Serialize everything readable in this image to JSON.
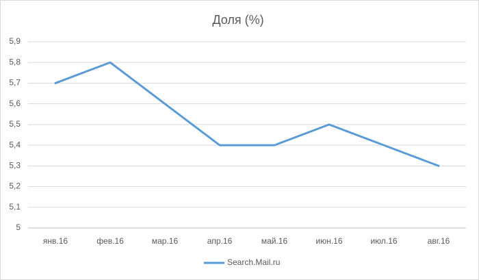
{
  "chart_data": {
    "type": "line",
    "title": "Доля (%)",
    "categories": [
      "янв.16",
      "фев.16",
      "мар.16",
      "апр.16",
      "май.16",
      "июн.16",
      "июл.16",
      "авг.16"
    ],
    "series": [
      {
        "name": "Search.Mail.ru",
        "color": "#5b9bd5",
        "values": [
          5.7,
          5.8,
          5.6,
          5.4,
          5.4,
          5.5,
          5.4,
          5.3
        ]
      }
    ],
    "ylim": [
      5,
      5.9
    ],
    "yticks": [
      5,
      {
        "value": 5.1,
        "label": "5,1"
      },
      {
        "value": 5.2,
        "label": "5,2"
      },
      {
        "value": 5.3,
        "label": "5,3"
      },
      {
        "value": 5.4,
        "label": "5,4"
      },
      {
        "value": 5.5,
        "label": "5,5"
      },
      {
        "value": 5.6,
        "label": "5,6"
      },
      {
        "value": 5.7,
        "label": "5,7"
      },
      {
        "value": 5.8,
        "label": "5,8"
      },
      {
        "value": 5.9,
        "label": "5,9"
      }
    ],
    "grid": true,
    "legend": "bottom"
  }
}
